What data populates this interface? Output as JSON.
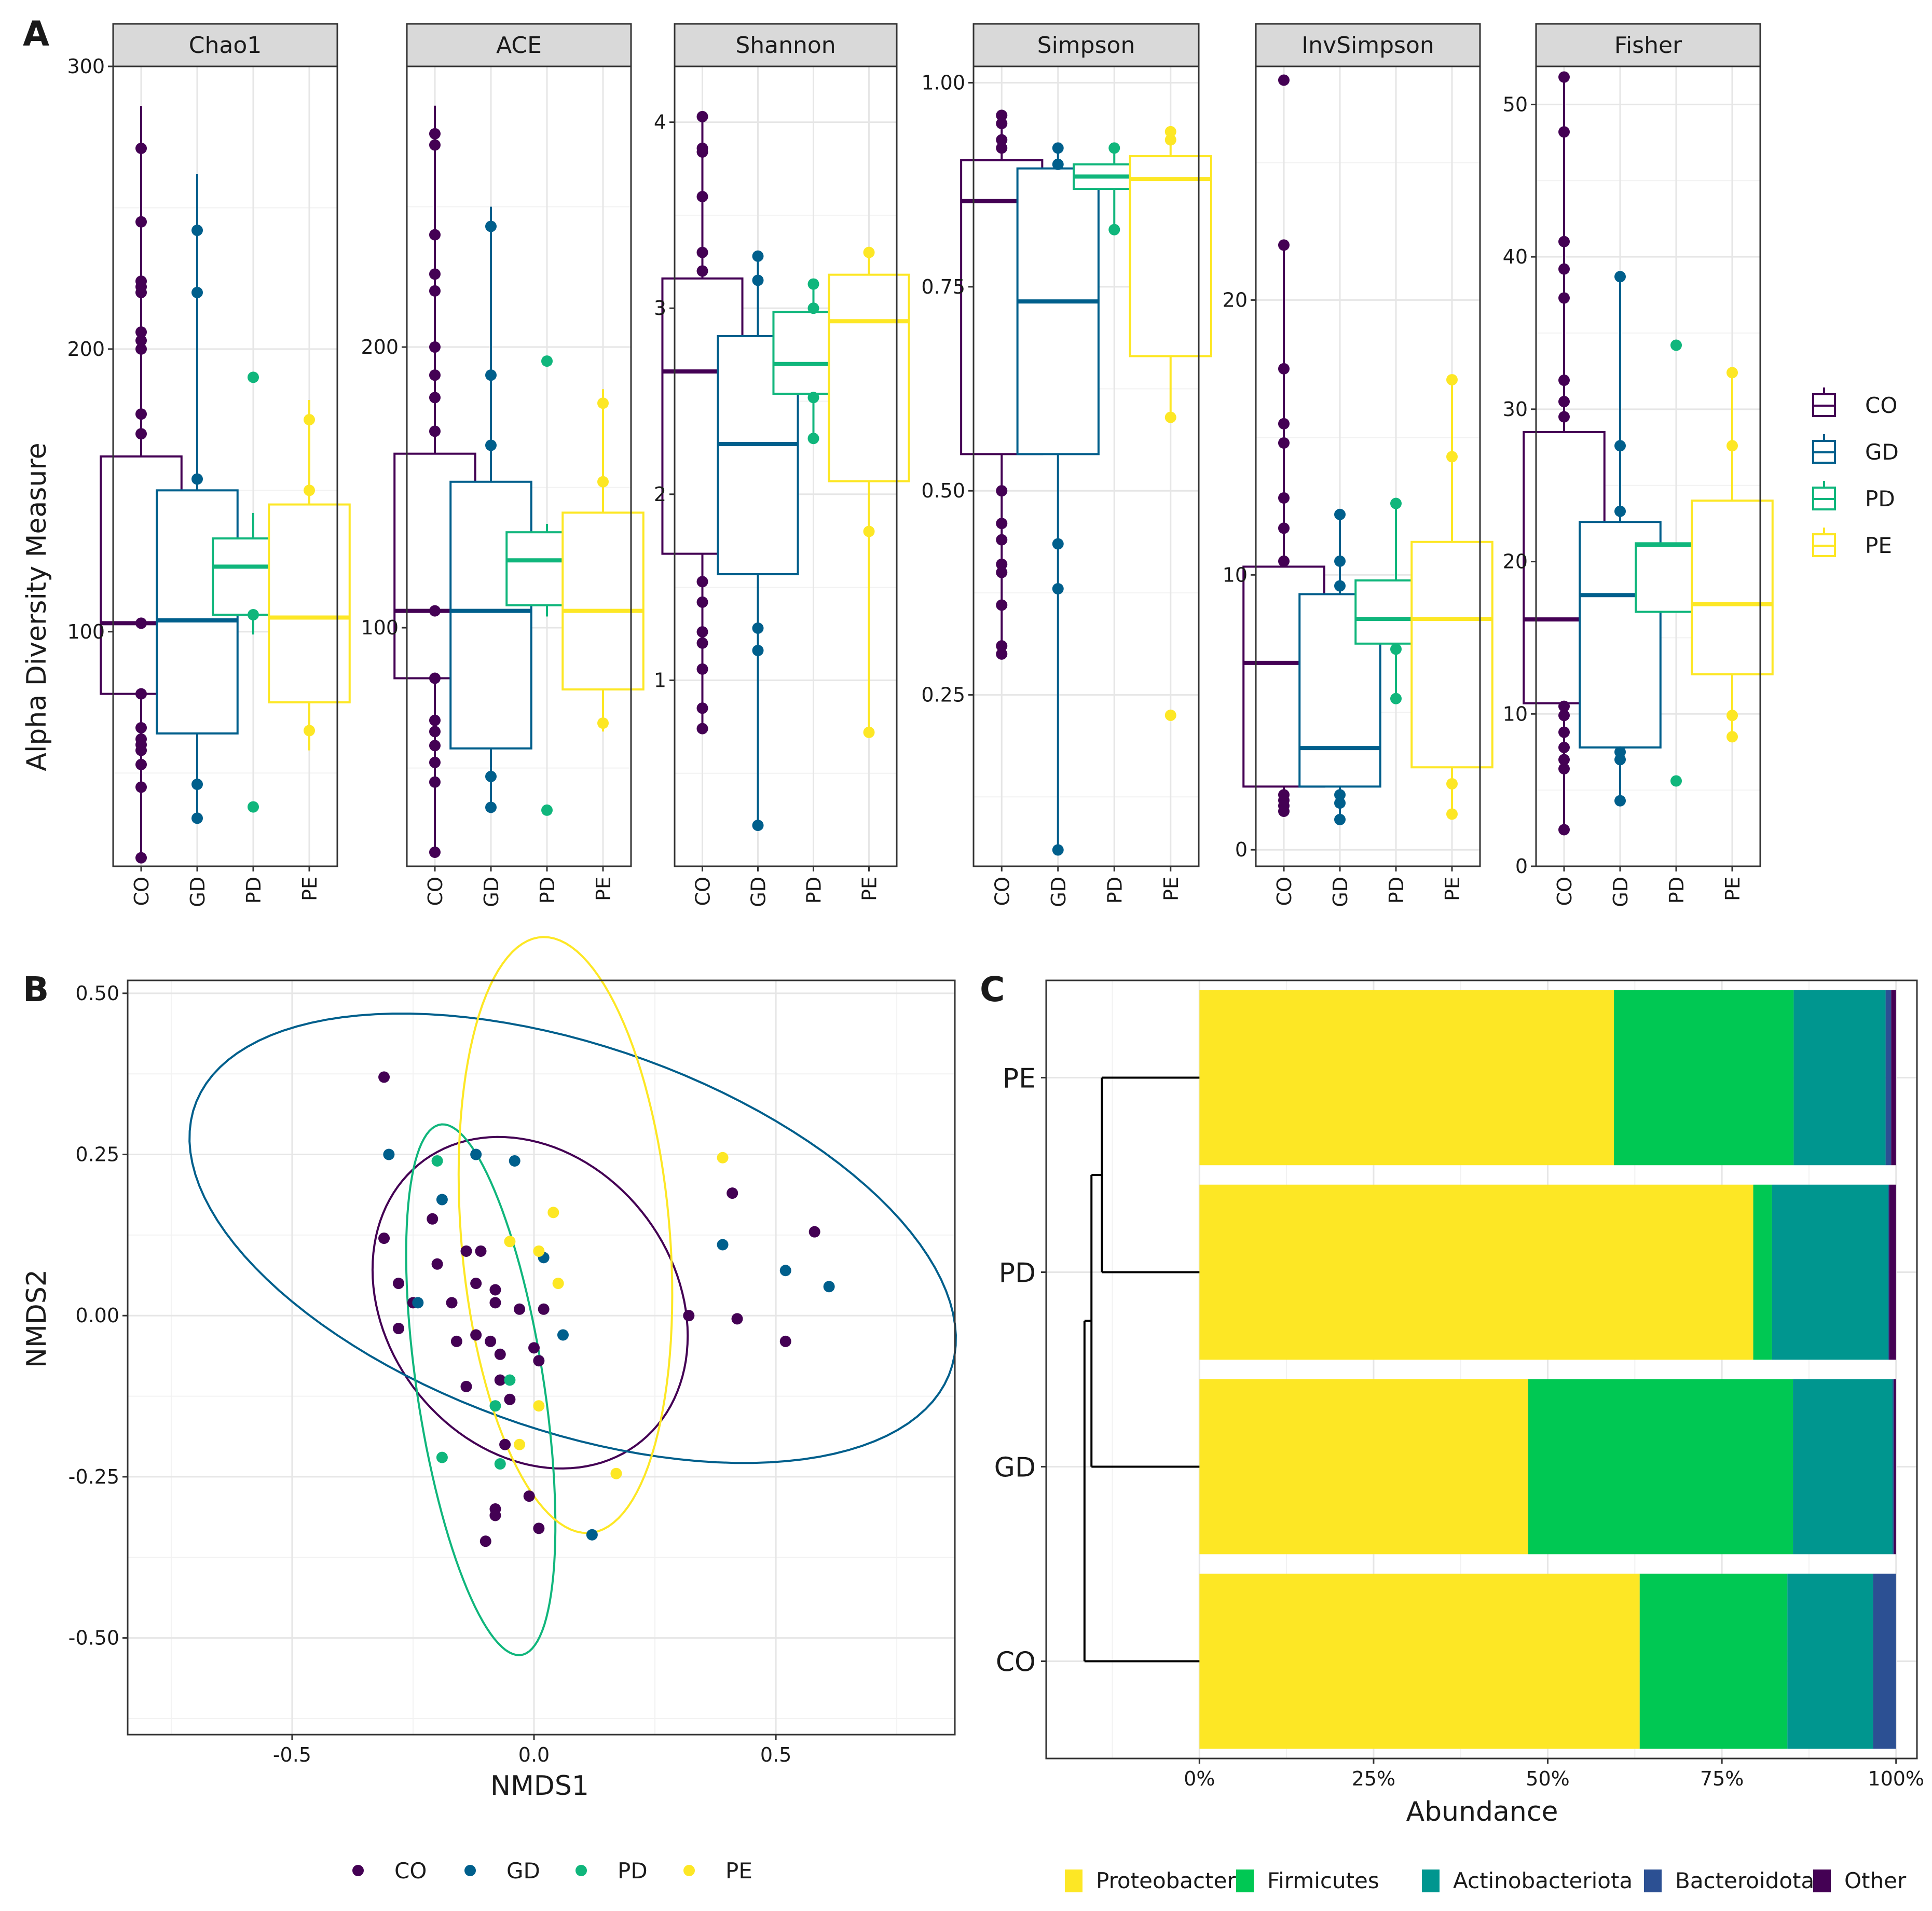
{
  "colors": {
    "CO": "#440154",
    "GD": "#005f8c",
    "PD": "#10b67c",
    "PE": "#fde725",
    "Proteobacteria": "#fde725",
    "Firmicutes": "#00c853",
    "Actinobacteriota": "#00968f",
    "Bacteroidota": "#2c5093",
    "Other": "#440154"
  },
  "groups": [
    "CO",
    "GD",
    "PD",
    "PE"
  ],
  "panel_labels": {
    "a": "A",
    "b": "B",
    "c": "C"
  },
  "chart_data": [
    {
      "type": "boxplot",
      "panel": "A",
      "ylabel": "Alpha Diversity Measure",
      "legend": [
        "CO",
        "GD",
        "PD",
        "PE"
      ],
      "facets": [
        {
          "name": "Chao1",
          "ylim": [
            17,
            300
          ],
          "ticks": [
            100,
            200,
            300
          ],
          "tick_labels": [
            "100",
            "200",
            "300"
          ],
          "boxes": [
            {
              "group": "CO",
              "q1": 78,
              "median": 103,
              "q3": 162,
              "whisker_lo": 20,
              "whisker_hi": 286,
              "points": [
                20,
                45,
                53,
                58,
                60,
                62,
                66,
                78,
                103,
                170,
                177,
                200,
                203,
                206,
                220,
                222,
                224,
                245,
                271
              ]
            },
            {
              "group": "GD",
              "q1": 64,
              "median": 104,
              "q3": 150,
              "whisker_lo": 34,
              "whisker_hi": 262,
              "points": [
                34,
                46,
                154,
                220,
                242
              ]
            },
            {
              "group": "PD",
              "q1": 106,
              "median": 123,
              "q3": 133,
              "whisker_lo": 99,
              "whisker_hi": 142,
              "points": [
                38,
                106,
                190
              ]
            },
            {
              "group": "PE",
              "q1": 75,
              "median": 105,
              "q3": 145,
              "whisker_lo": 58,
              "whisker_hi": 182,
              "points": [
                65,
                150,
                175
              ]
            }
          ]
        },
        {
          "name": "ACE",
          "ylim": [
            15,
            300
          ],
          "ticks": [
            100,
            200
          ],
          "tick_labels": [
            "100",
            "200"
          ],
          "boxes": [
            {
              "group": "CO",
              "q1": 82,
              "median": 106,
              "q3": 162,
              "whisker_lo": 20,
              "whisker_hi": 286,
              "points": [
                20,
                45,
                52,
                58,
                63,
                67,
                82,
                106,
                170,
                182,
                190,
                200,
                220,
                226,
                240,
                272,
                276
              ]
            },
            {
              "group": "GD",
              "q1": 57,
              "median": 106,
              "q3": 152,
              "whisker_lo": 34,
              "whisker_hi": 250,
              "points": [
                36,
                47,
                165,
                190,
                243
              ]
            },
            {
              "group": "PD",
              "q1": 108,
              "median": 124,
              "q3": 134,
              "whisker_lo": 104,
              "whisker_hi": 137,
              "points": [
                35,
                195
              ]
            },
            {
              "group": "PE",
              "q1": 78,
              "median": 106,
              "q3": 141,
              "whisker_lo": 63,
              "whisker_hi": 185,
              "points": [
                66,
                152,
                180
              ]
            }
          ]
        },
        {
          "name": "Shannon",
          "ylim": [
            0,
            4.3
          ],
          "ticks": [
            1,
            2,
            3,
            4
          ],
          "tick_labels": [
            "1",
            "2",
            "3",
            "4"
          ],
          "boxes": [
            {
              "group": "CO",
              "q1": 1.68,
              "median": 2.66,
              "q3": 3.16,
              "whisker_lo": 0.74,
              "whisker_hi": 4.03,
              "points": [
                0.74,
                0.85,
                1.06,
                1.2,
                1.26,
                1.42,
                1.53,
                3.2,
                3.3,
                3.6,
                3.84,
                3.86,
                4.03
              ]
            },
            {
              "group": "GD",
              "q1": 1.57,
              "median": 2.27,
              "q3": 2.85,
              "whisker_lo": 0.22,
              "whisker_hi": 3.28,
              "points": [
                0.22,
                1.16,
                1.28,
                3.15,
                3.28
              ]
            },
            {
              "group": "PD",
              "q1": 2.54,
              "median": 2.7,
              "q3": 2.98,
              "whisker_lo": 2.3,
              "whisker_hi": 3.13,
              "points": [
                2.3,
                2.52,
                3.0,
                3.13
              ]
            },
            {
              "group": "PE",
              "q1": 2.07,
              "median": 2.93,
              "q3": 3.18,
              "whisker_lo": 0.72,
              "whisker_hi": 3.3,
              "points": [
                0.72,
                1.8,
                3.3
              ]
            }
          ]
        },
        {
          "name": "Simpson",
          "ylim": [
            0.04,
            1.02
          ],
          "ticks": [
            0.25,
            0.5,
            0.75,
            1.0
          ],
          "tick_labels": [
            "0.25",
            "0.50",
            "0.75",
            "1.00"
          ],
          "boxes": [
            {
              "group": "CO",
              "q1": 0.545,
              "median": 0.855,
              "q3": 0.905,
              "whisker_lo": 0.3,
              "whisker_hi": 0.96,
              "points": [
                0.3,
                0.31,
                0.36,
                0.4,
                0.41,
                0.44,
                0.46,
                0.5,
                0.92,
                0.93,
                0.95,
                0.96
              ]
            },
            {
              "group": "GD",
              "q1": 0.545,
              "median": 0.732,
              "q3": 0.895,
              "whisker_lo": 0.06,
              "whisker_hi": 0.92,
              "points": [
                0.06,
                0.38,
                0.435,
                0.9,
                0.92
              ]
            },
            {
              "group": "PD",
              "q1": 0.87,
              "median": 0.885,
              "q3": 0.9,
              "whisker_lo": 0.82,
              "whisker_hi": 0.92,
              "points": [
                0.82,
                0.92
              ]
            },
            {
              "group": "PE",
              "q1": 0.665,
              "median": 0.882,
              "q3": 0.91,
              "whisker_lo": 0.59,
              "whisker_hi": 0.94,
              "points": [
                0.225,
                0.59,
                0.93,
                0.94
              ]
            }
          ]
        },
        {
          "name": "InvSimpson",
          "ylim": [
            -0.6,
            28.5
          ],
          "ticks": [
            0,
            10,
            20
          ],
          "tick_labels": [
            "0",
            "10",
            "20"
          ],
          "boxes": [
            {
              "group": "CO",
              "q1": 2.3,
              "median": 6.8,
              "q3": 10.3,
              "whisker_lo": 1.4,
              "whisker_hi": 22,
              "points": [
                1.4,
                1.6,
                1.8,
                2.0,
                10.5,
                11.7,
                12.8,
                14.8,
                15.5,
                17.5,
                22,
                28
              ]
            },
            {
              "group": "GD",
              "q1": 2.3,
              "median": 3.7,
              "q3": 9.3,
              "whisker_lo": 1.1,
              "whisker_hi": 12.2,
              "points": [
                1.1,
                1.7,
                2.0,
                9.6,
                10.5,
                12.2
              ]
            },
            {
              "group": "PD",
              "q1": 7.5,
              "median": 8.4,
              "q3": 9.8,
              "whisker_lo": 5.5,
              "whisker_hi": 12.6,
              "points": [
                5.5,
                7.3,
                12.6
              ]
            },
            {
              "group": "PE",
              "q1": 3.0,
              "median": 8.4,
              "q3": 11.2,
              "whisker_lo": 1.3,
              "whisker_hi": 17.1,
              "points": [
                1.3,
                2.4,
                14.3,
                17.1
              ]
            }
          ]
        },
        {
          "name": "Fisher",
          "ylim": [
            0,
            52.5
          ],
          "ticks": [
            0,
            10,
            20,
            30,
            40,
            50
          ],
          "tick_labels": [
            "0",
            "10",
            "20",
            "30",
            "40",
            "50"
          ],
          "boxes": [
            {
              "group": "CO",
              "q1": 10.7,
              "median": 16.2,
              "q3": 28.5,
              "whisker_lo": 2.4,
              "whisker_hi": 51.8,
              "points": [
                2.4,
                6.4,
                7.0,
                7.8,
                8.8,
                9.9,
                10.5,
                29.5,
                30.5,
                31.9,
                37.3,
                39.2,
                41.0,
                48.2,
                51.8
              ]
            },
            {
              "group": "GD",
              "q1": 7.8,
              "median": 17.8,
              "q3": 22.6,
              "whisker_lo": 4.3,
              "whisker_hi": 38.7,
              "points": [
                4.3,
                7.0,
                7.5,
                23.3,
                27.6,
                38.7
              ]
            },
            {
              "group": "PD",
              "q1": 16.7,
              "median": 21.1,
              "q3": 21.2,
              "whisker_lo": 16.7,
              "whisker_hi": 21.2,
              "points": [
                5.6,
                34.2
              ]
            },
            {
              "group": "PE",
              "q1": 12.6,
              "median": 17.2,
              "q3": 24.0,
              "whisker_lo": 8.4,
              "whisker_hi": 32.4,
              "points": [
                8.5,
                9.9,
                27.6,
                32.4
              ]
            }
          ]
        }
      ]
    },
    {
      "type": "scatter",
      "panel": "B",
      "xlabel": "NMDS1",
      "ylabel": "NMDS2",
      "xlim": [
        -0.84,
        0.87
      ],
      "ylim": [
        -0.65,
        0.52
      ],
      "xticks": [
        -0.5,
        0.0,
        0.5
      ],
      "xtick_labels": [
        "-0.5",
        "0.0",
        "0.5"
      ],
      "yticks": [
        -0.5,
        -0.25,
        0.0,
        0.25,
        0.5
      ],
      "ytick_labels": [
        "-0.50",
        "-0.25",
        "0.00",
        "0.25",
        "0.50"
      ],
      "legend": [
        "CO",
        "GD",
        "PD",
        "PE"
      ],
      "ellipses": [
        {
          "group": "CO",
          "cx": -0.008,
          "cy": 0.02,
          "rx": 0.335,
          "ry": 0.245,
          "angle": -20
        },
        {
          "group": "GD",
          "cx": 0.08,
          "cy": 0.12,
          "rx": 0.81,
          "ry": 0.305,
          "angle": -13
        },
        {
          "group": "PD",
          "cx": -0.11,
          "cy": -0.115,
          "rx": 0.42,
          "ry": 0.13,
          "angle": -78
        },
        {
          "group": "PE",
          "cx": 0.065,
          "cy": 0.125,
          "rx": 0.465,
          "ry": 0.215,
          "angle": -83
        }
      ],
      "series": [
        {
          "name": "CO",
          "x": [
            -0.31,
            -0.31,
            -0.28,
            -0.28,
            -0.25,
            -0.21,
            -0.2,
            -0.17,
            -0.16,
            -0.14,
            -0.14,
            -0.12,
            -0.12,
            -0.11,
            -0.09,
            -0.08,
            -0.08,
            -0.07,
            -0.07,
            -0.08,
            -0.06,
            -0.05,
            -0.03,
            -0.01,
            0.0,
            0.01,
            0.01,
            0.02,
            -0.1,
            -0.08,
            0.32,
            0.41,
            0.42,
            0.52,
            0.58
          ],
          "y": [
            0.37,
            0.12,
            0.05,
            -0.02,
            0.02,
            0.15,
            0.08,
            0.02,
            -0.04,
            -0.11,
            0.1,
            0.05,
            -0.03,
            0.1,
            -0.04,
            0.04,
            0.02,
            -0.06,
            -0.1,
            -0.3,
            -0.2,
            -0.13,
            0.01,
            -0.28,
            -0.05,
            -0.07,
            -0.33,
            0.01,
            -0.35,
            -0.31,
            0.0,
            0.19,
            -0.005,
            -0.04,
            0.13
          ]
        },
        {
          "name": "GD",
          "x": [
            -0.3,
            -0.19,
            -0.12,
            -0.04,
            -0.24,
            0.02,
            0.06,
            0.12,
            0.39,
            0.52,
            0.61
          ],
          "y": [
            0.25,
            0.18,
            0.25,
            0.24,
            0.02,
            0.09,
            -0.03,
            -0.34,
            0.11,
            0.07,
            0.045
          ]
        },
        {
          "name": "PD",
          "x": [
            -0.2,
            -0.19,
            -0.08,
            -0.05,
            -0.07
          ],
          "y": [
            0.24,
            -0.22,
            -0.14,
            -0.1,
            -0.23
          ]
        },
        {
          "name": "PE",
          "x": [
            -0.05,
            0.01,
            0.04,
            0.05,
            0.01,
            -0.03,
            0.17,
            0.39
          ],
          "y": [
            0.115,
            0.1,
            0.16,
            0.05,
            -0.14,
            -0.2,
            -0.245,
            0.245
          ]
        }
      ]
    },
    {
      "type": "bar",
      "panel": "C",
      "orientation": "horizontal-stacked",
      "xlabel": "Abundance",
      "xlim": [
        -0.22,
        1.03
      ],
      "xticks": [
        0,
        0.25,
        0.5,
        0.75,
        1.0
      ],
      "xtick_labels": [
        "0%",
        "25%",
        "50%",
        "75%",
        "100%"
      ],
      "categories": [
        "PE",
        "PD",
        "GD",
        "CO"
      ],
      "legend": [
        "Proteobacteria",
        "Firmicutes",
        "Actinobacteriota",
        "Bacteroidota",
        "Other"
      ],
      "series": [
        {
          "name": "Proteobacteria",
          "values": [
            0.595,
            0.795,
            0.472,
            0.632
          ]
        },
        {
          "name": "Firmicutes",
          "values": [
            0.258,
            0.027,
            0.38,
            0.212
          ]
        },
        {
          "name": "Actinobacteriota",
          "values": [
            0.132,
            0.167,
            0.143,
            0.123
          ]
        },
        {
          "name": "Bacteroidota",
          "values": [
            0.008,
            0.001,
            0.002,
            0.033
          ]
        },
        {
          "name": "Other",
          "values": [
            0.007,
            0.01,
            0.003,
            0.0
          ]
        }
      ],
      "dendrogram": {
        "height_PE_PD": 0.14,
        "height_PE_PD_GD": 0.155,
        "height_root": 0.165
      }
    }
  ]
}
